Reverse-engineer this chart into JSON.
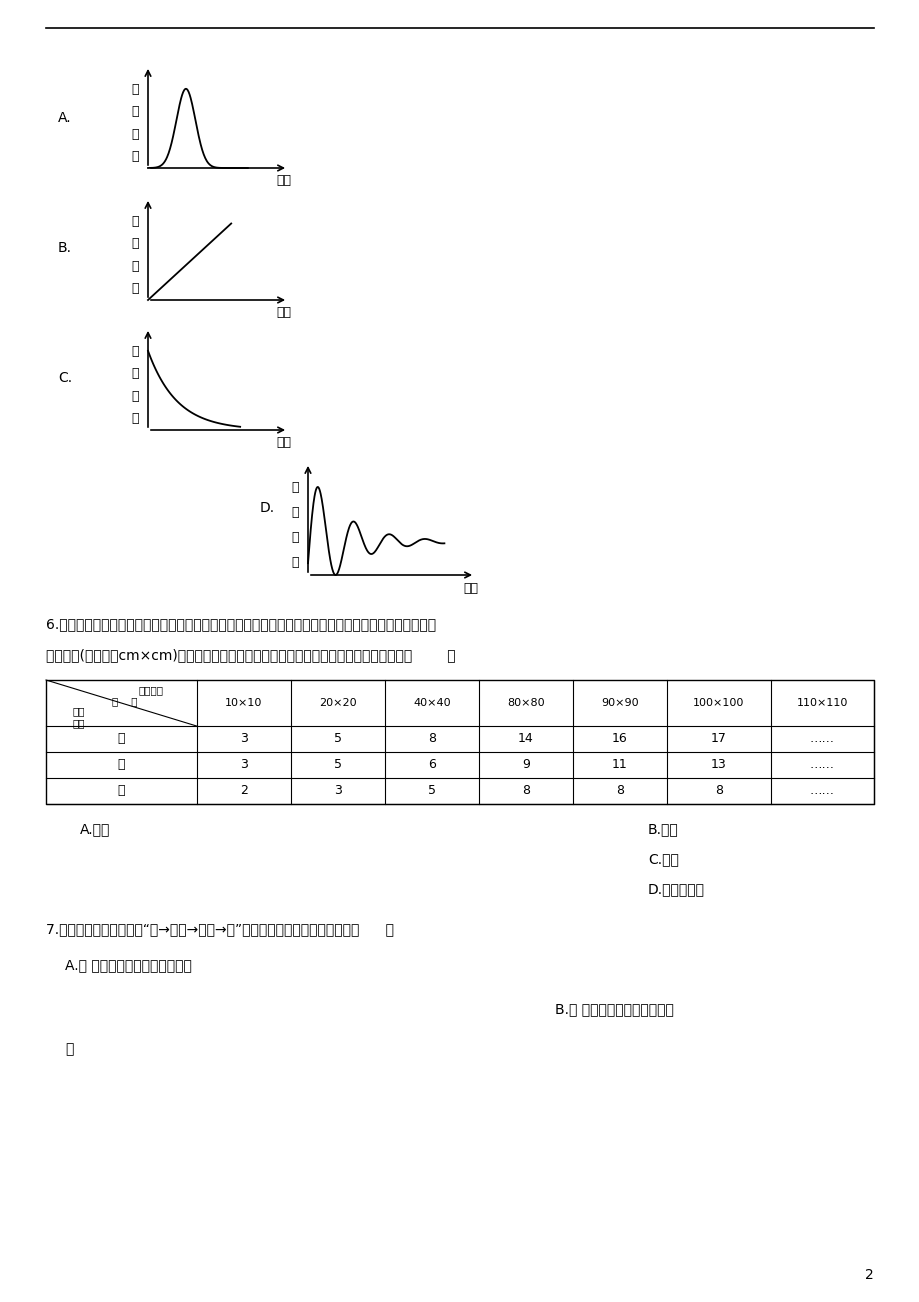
{
  "bg_color": "#ffffff",
  "page_number": "2",
  "graph_A_label": "A.",
  "graph_B_label": "B.",
  "graph_C_label": "C.",
  "graph_D_label": "D.",
  "ylabel_chars": [
    "鹿",
    "的",
    "数",
    "量"
  ],
  "xlabel_text": "时间",
  "q6_text": "6.生态工作者从东到西对我国北方甲、乙、丙三种类型的草原进行调查。下表是不同面积中不同物种数量",
  "q6_text2": "统计结果(调查面积cm×cm)，根据表中数据推断，对放牧干扰的抗抗力最弱的草原类型是（        ）",
  "table_row_labels": [
    "甲",
    "乙",
    "丙"
  ],
  "table_row0": [
    "3",
    "5",
    "8",
    "14",
    "16",
    "17",
    "……"
  ],
  "table_row1": [
    "3",
    "5",
    "6",
    "9",
    "11",
    "13",
    "……"
  ],
  "table_row2": [
    "2",
    "3",
    "5",
    "8",
    "8",
    "8",
    "……"
  ],
  "col_headers": [
    "10×10",
    "20×20",
    "40×40",
    "80×80",
    "90×90",
    "100×100",
    "110×110"
  ],
  "q6_optA": "A.　甲",
  "q6_optB": "B.　乙",
  "q6_optC": "C.　丙",
  "q6_optD": "D.　不能确定",
  "q7_text": "7.人类大量捕食青蛙，对“草→害虫→青蛙→蛇”食物链中的其他生物的影响是（      ）",
  "q7_optA": "A.　 害虫数量增加，蛇数量增加",
  "q7_optB": "B.　 害虫数量增加，蛇数量减",
  "q7_optB2": "少"
}
